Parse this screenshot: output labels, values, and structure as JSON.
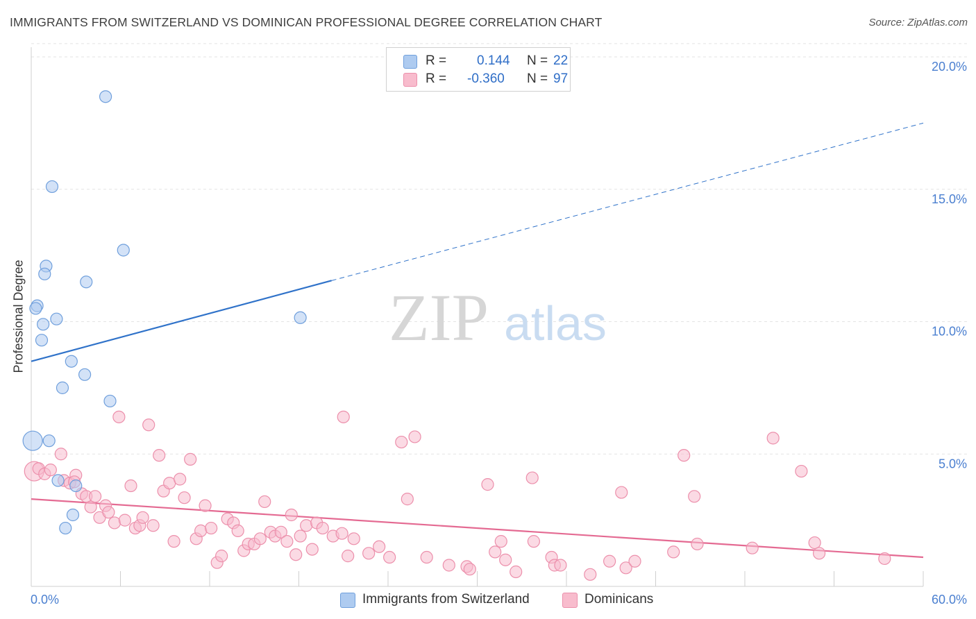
{
  "header": {
    "title": "IMMIGRANTS FROM SWITZERLAND VS DOMINICAN PROFESSIONAL DEGREE CORRELATION CHART",
    "source": "Source: ZipAtlas.com"
  },
  "watermark": {
    "zip": "ZIP",
    "atlas": "atlas"
  },
  "legend_top": [
    {
      "r_label": "R =",
      "r_value": "0.144",
      "n_label": "N =",
      "n_value": "22"
    },
    {
      "r_label": "R =",
      "r_value": "-0.360",
      "n_label": "N =",
      "n_value": "97"
    }
  ],
  "legend_bottom": [
    "Immigrants from Switzerland",
    "Dominicans"
  ],
  "colors": {
    "blue_fill": "#aecbf0",
    "blue_stroke": "#6f9fdc",
    "blue_line": "#2f72c9",
    "pink_fill": "#f8bccd",
    "pink_stroke": "#ec8fab",
    "pink_line": "#e46a92",
    "tick_label": "#4a7fd0",
    "grid": "#e3e3e3"
  },
  "chart_data": {
    "type": "scatter",
    "title": "IMMIGRANTS FROM SWITZERLAND VS DOMINICAN PROFESSIONAL DEGREE CORRELATION CHART",
    "xlabel": "",
    "ylabel": "Professional Degree",
    "xlim": [
      0,
      60
    ],
    "ylim": [
      0,
      20.5
    ],
    "x_tick_labels": [
      "0.0%",
      "60.0%"
    ],
    "y_ticks": [
      5,
      10,
      15,
      20
    ],
    "y_tick_labels": [
      "5.0%",
      "10.0%",
      "15.0%",
      "20.0%"
    ],
    "series": [
      {
        "name": "Immigrants from Switzerland",
        "color": "blue",
        "R": 0.144,
        "N": 22,
        "trend": {
          "x0": 0,
          "y0": 8.5,
          "x_solid_end": 20.2,
          "y_solid_end": 11.55,
          "x1": 60,
          "y1": 17.5
        },
        "points": [
          {
            "x": 5.0,
            "y": 18.5
          },
          {
            "x": 1.4,
            "y": 15.1
          },
          {
            "x": 6.2,
            "y": 12.7
          },
          {
            "x": 1.0,
            "y": 12.1
          },
          {
            "x": 0.9,
            "y": 11.8
          },
          {
            "x": 3.7,
            "y": 11.5
          },
          {
            "x": 0.4,
            "y": 10.6
          },
          {
            "x": 0.3,
            "y": 10.5
          },
          {
            "x": 1.7,
            "y": 10.1
          },
          {
            "x": 18.1,
            "y": 10.15
          },
          {
            "x": 0.8,
            "y": 9.9
          },
          {
            "x": 0.7,
            "y": 9.3
          },
          {
            "x": 2.7,
            "y": 8.5
          },
          {
            "x": 3.6,
            "y": 8.0
          },
          {
            "x": 2.1,
            "y": 7.5
          },
          {
            "x": 5.3,
            "y": 7.0
          },
          {
            "x": 0.1,
            "y": 5.5,
            "big": true
          },
          {
            "x": 1.2,
            "y": 5.5
          },
          {
            "x": 3.0,
            "y": 3.8
          },
          {
            "x": 1.8,
            "y": 4.0
          },
          {
            "x": 2.8,
            "y": 2.7
          },
          {
            "x": 2.3,
            "y": 2.2
          }
        ]
      },
      {
        "name": "Dominicans",
        "color": "pink",
        "R": -0.36,
        "N": 97,
        "trend": {
          "x0": 0,
          "y0": 3.3,
          "x1": 60,
          "y1": 1.1
        },
        "points": [
          {
            "x": 0.2,
            "y": 4.35,
            "big": true
          },
          {
            "x": 0.5,
            "y": 4.45
          },
          {
            "x": 0.9,
            "y": 4.25
          },
          {
            "x": 1.3,
            "y": 4.4
          },
          {
            "x": 2.0,
            "y": 5.0
          },
          {
            "x": 2.2,
            "y": 4.0
          },
          {
            "x": 2.6,
            "y": 3.9
          },
          {
            "x": 3.0,
            "y": 4.2
          },
          {
            "x": 2.9,
            "y": 3.95
          },
          {
            "x": 3.4,
            "y": 3.5
          },
          {
            "x": 3.7,
            "y": 3.4
          },
          {
            "x": 4.0,
            "y": 3.0
          },
          {
            "x": 4.3,
            "y": 3.4
          },
          {
            "x": 4.6,
            "y": 2.6
          },
          {
            "x": 5.0,
            "y": 3.05
          },
          {
            "x": 5.2,
            "y": 2.8
          },
          {
            "x": 5.6,
            "y": 2.4
          },
          {
            "x": 5.9,
            "y": 6.4
          },
          {
            "x": 6.3,
            "y": 2.5
          },
          {
            "x": 6.7,
            "y": 3.8
          },
          {
            "x": 7.0,
            "y": 2.2
          },
          {
            "x": 7.3,
            "y": 2.3
          },
          {
            "x": 7.5,
            "y": 2.6
          },
          {
            "x": 7.9,
            "y": 6.1
          },
          {
            "x": 8.2,
            "y": 2.3
          },
          {
            "x": 8.6,
            "y": 4.95
          },
          {
            "x": 8.9,
            "y": 3.6
          },
          {
            "x": 9.3,
            "y": 3.9
          },
          {
            "x": 9.6,
            "y": 1.7
          },
          {
            "x": 10.0,
            "y": 4.05
          },
          {
            "x": 10.3,
            "y": 3.35
          },
          {
            "x": 10.7,
            "y": 4.8
          },
          {
            "x": 11.1,
            "y": 1.8
          },
          {
            "x": 11.4,
            "y": 2.1
          },
          {
            "x": 11.7,
            "y": 3.05
          },
          {
            "x": 12.1,
            "y": 2.2
          },
          {
            "x": 12.5,
            "y": 0.9
          },
          {
            "x": 12.8,
            "y": 1.15
          },
          {
            "x": 13.2,
            "y": 2.55
          },
          {
            "x": 13.6,
            "y": 2.4
          },
          {
            "x": 13.9,
            "y": 2.1
          },
          {
            "x": 14.3,
            "y": 1.35
          },
          {
            "x": 14.6,
            "y": 1.6
          },
          {
            "x": 15.0,
            "y": 1.6
          },
          {
            "x": 15.4,
            "y": 1.8
          },
          {
            "x": 15.7,
            "y": 3.2
          },
          {
            "x": 16.1,
            "y": 2.05
          },
          {
            "x": 16.4,
            "y": 1.9
          },
          {
            "x": 16.8,
            "y": 2.05
          },
          {
            "x": 17.2,
            "y": 1.7
          },
          {
            "x": 17.5,
            "y": 2.7
          },
          {
            "x": 17.8,
            "y": 1.2
          },
          {
            "x": 18.1,
            "y": 1.9
          },
          {
            "x": 18.5,
            "y": 2.3
          },
          {
            "x": 18.9,
            "y": 1.4
          },
          {
            "x": 19.2,
            "y": 2.4
          },
          {
            "x": 19.6,
            "y": 2.2
          },
          {
            "x": 20.3,
            "y": 1.9
          },
          {
            "x": 20.9,
            "y": 2.0
          },
          {
            "x": 21.0,
            "y": 6.4
          },
          {
            "x": 21.3,
            "y": 1.15
          },
          {
            "x": 21.7,
            "y": 1.8
          },
          {
            "x": 22.7,
            "y": 1.25
          },
          {
            "x": 23.4,
            "y": 1.5
          },
          {
            "x": 24.1,
            "y": 1.1
          },
          {
            "x": 24.9,
            "y": 5.45
          },
          {
            "x": 25.3,
            "y": 3.3
          },
          {
            "x": 25.8,
            "y": 5.65
          },
          {
            "x": 26.6,
            "y": 1.1
          },
          {
            "x": 28.1,
            "y": 0.8
          },
          {
            "x": 29.3,
            "y": 0.75
          },
          {
            "x": 29.5,
            "y": 0.65
          },
          {
            "x": 30.7,
            "y": 3.85
          },
          {
            "x": 31.2,
            "y": 1.3
          },
          {
            "x": 31.6,
            "y": 1.7
          },
          {
            "x": 31.9,
            "y": 1.0
          },
          {
            "x": 32.6,
            "y": 0.55
          },
          {
            "x": 33.7,
            "y": 4.1
          },
          {
            "x": 33.8,
            "y": 1.7
          },
          {
            "x": 35.0,
            "y": 1.1
          },
          {
            "x": 35.2,
            "y": 0.8
          },
          {
            "x": 35.6,
            "y": 0.8
          },
          {
            "x": 37.6,
            "y": 0.45
          },
          {
            "x": 38.9,
            "y": 0.95
          },
          {
            "x": 39.7,
            "y": 3.55
          },
          {
            "x": 40.0,
            "y": 0.7
          },
          {
            "x": 40.6,
            "y": 0.95
          },
          {
            "x": 43.2,
            "y": 1.3
          },
          {
            "x": 43.9,
            "y": 4.95
          },
          {
            "x": 44.6,
            "y": 3.4
          },
          {
            "x": 44.8,
            "y": 1.6
          },
          {
            "x": 48.5,
            "y": 1.45
          },
          {
            "x": 49.9,
            "y": 5.6
          },
          {
            "x": 51.8,
            "y": 4.35
          },
          {
            "x": 52.7,
            "y": 1.65
          },
          {
            "x": 53.0,
            "y": 1.25
          },
          {
            "x": 57.4,
            "y": 1.05
          }
        ]
      }
    ]
  }
}
